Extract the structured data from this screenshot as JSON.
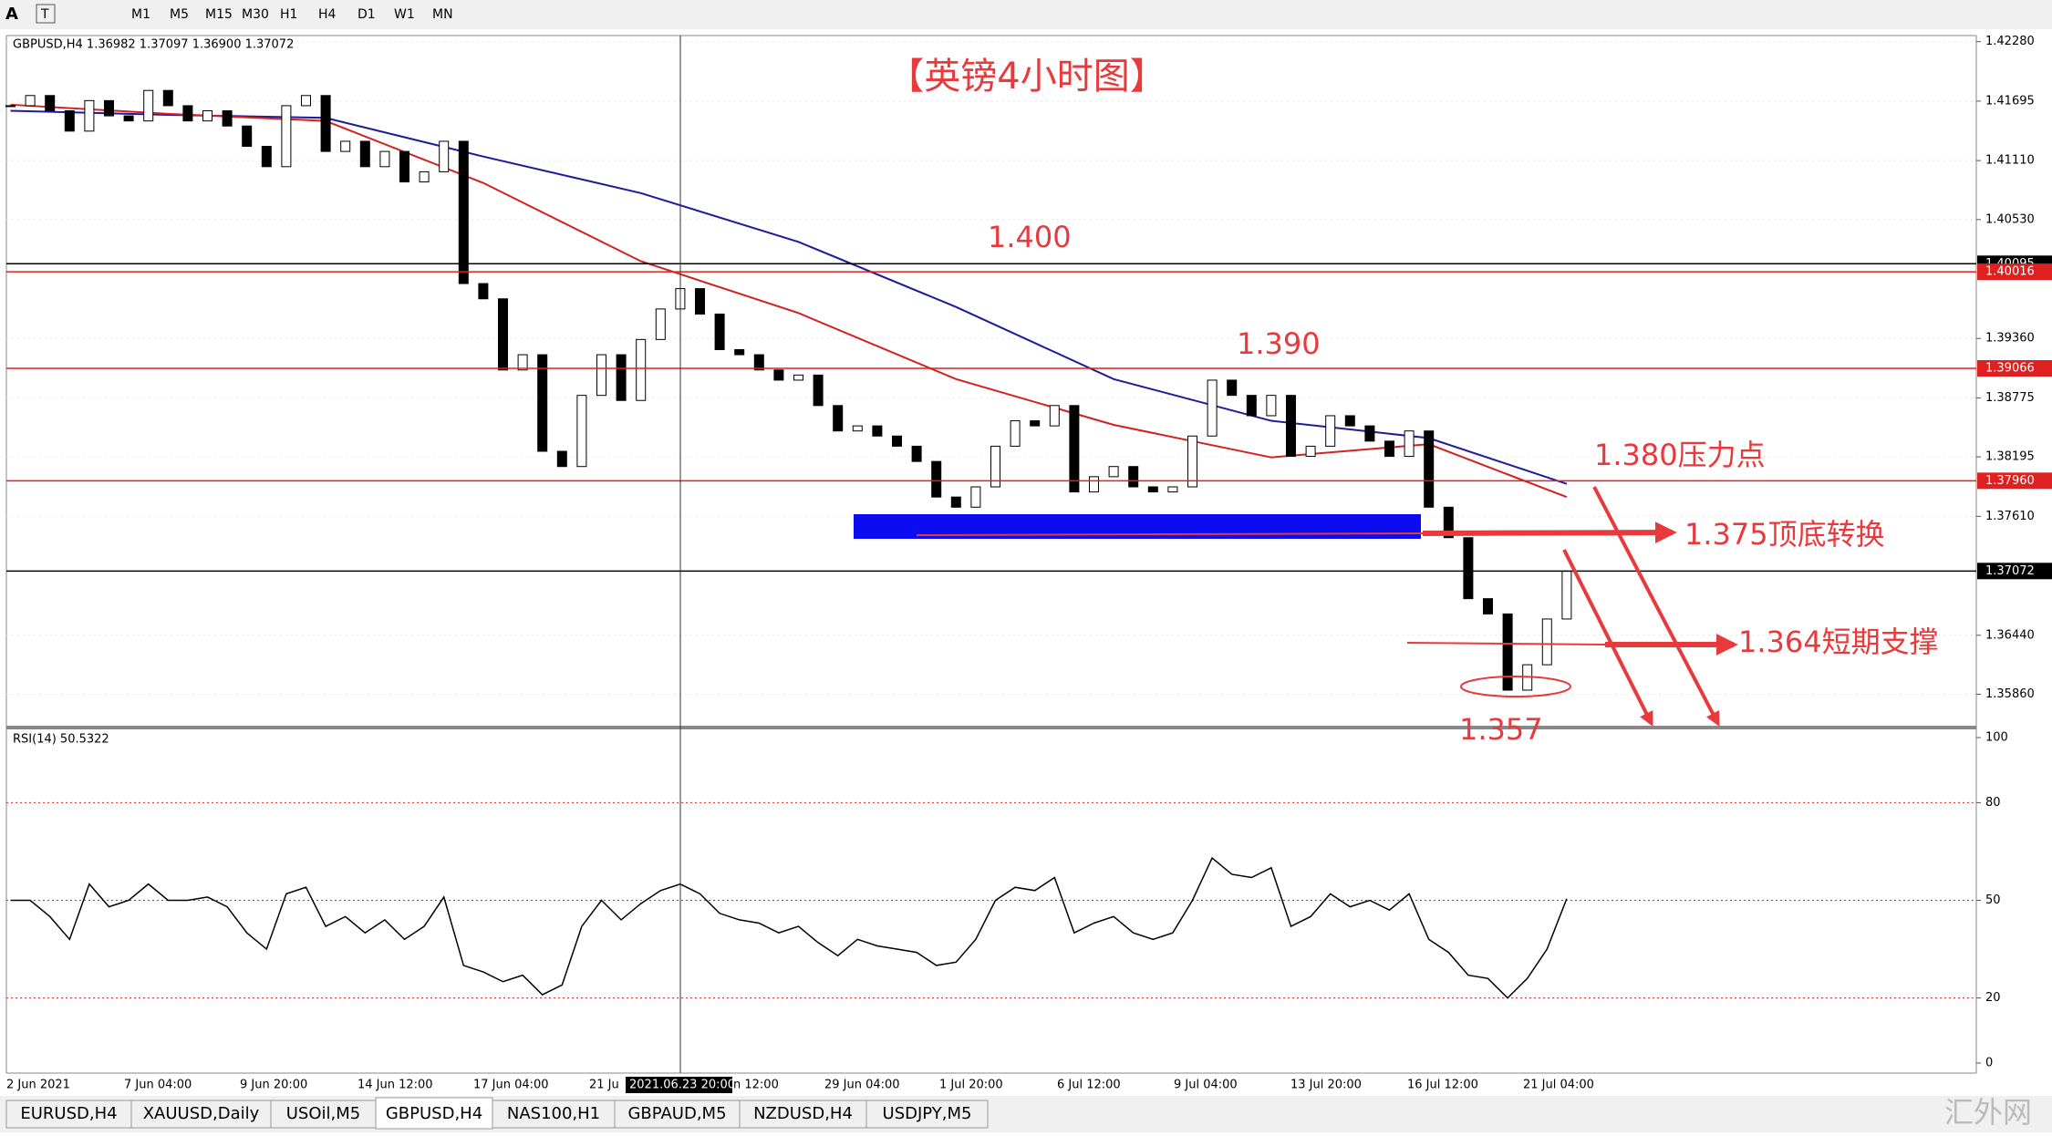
{
  "toolbar": {
    "periods": [
      "M1",
      "M5",
      "M15",
      "M30",
      "H1",
      "H4",
      "D1",
      "W1",
      "MN"
    ]
  },
  "chart_data": {
    "type": "candlestick",
    "header": "GBPUSD,H4  1.36982 1.37097 1.36900 1.37072",
    "title": "【英镑4小时图】",
    "close": [
      1.4165,
      1.4175,
      1.416,
      1.414,
      1.417,
      1.4155,
      1.415,
      1.418,
      1.4165,
      1.415,
      1.416,
      1.4145,
      1.4125,
      1.4105,
      1.4165,
      1.4175,
      1.412,
      1.413,
      1.4105,
      1.412,
      1.409,
      1.41,
      1.413,
      1.399,
      1.3975,
      1.3905,
      1.392,
      1.3825,
      1.381,
      1.388,
      1.392,
      1.3875,
      1.3935,
      1.3965,
      1.3985,
      1.396,
      1.3925,
      1.392,
      1.3905,
      1.3895,
      1.39,
      1.387,
      1.3845,
      1.385,
      1.384,
      1.383,
      1.3815,
      1.378,
      1.377,
      1.379,
      1.383,
      1.3855,
      1.385,
      1.387,
      1.3785,
      1.38,
      1.381,
      1.379,
      1.3785,
      1.379,
      1.384,
      1.3895,
      1.388,
      1.386,
      1.388,
      1.382,
      1.383,
      1.386,
      1.385,
      1.3835,
      1.382,
      1.3845,
      1.377,
      1.374,
      1.368,
      1.3665,
      1.359,
      1.3615,
      1.366,
      1.3707
    ],
    "bull_color": "#ffffff",
    "bear_color": "#000000",
    "ylim": [
      1.3555,
      1.4234
    ],
    "yticks": [
      {
        "value": 1.4228,
        "label": "1.42280"
      },
      1.41695,
      {
        "value": 1.4111,
        "label": "1.41110"
      },
      {
        "value": 1.4053,
        "label": "1.40530"
      },
      {
        "value": 1.3936,
        "label": "1.39360"
      },
      1.38775,
      1.38195,
      {
        "value": 1.3761,
        "label": "1.37610"
      },
      {
        "value": 1.3644,
        "label": "1.36440"
      },
      {
        "value": 1.3586,
        "label": "1.35860"
      }
    ],
    "price_tags": [
      {
        "value": 1.40095,
        "color": "#000000"
      },
      {
        "value": 1.40016,
        "color": "#e02020"
      },
      {
        "value": 1.39066,
        "color": "#e02020"
      },
      {
        "value": 1.3796,
        "label": "1.37960",
        "color": "#e02020"
      },
      {
        "value": 1.37072,
        "color": "#000000"
      }
    ],
    "ma": [
      {
        "color": "#1c1c9c",
        "x": [
          0,
          8,
          16,
          24,
          32,
          40,
          48,
          56,
          64,
          72,
          79
        ],
        "values": [
          1.416,
          1.4156,
          1.4153,
          1.4115,
          1.4079,
          1.4031,
          1.3967,
          1.3896,
          1.3855,
          1.3838,
          1.3793
        ]
      },
      {
        "color": "#d42020",
        "x": [
          0,
          8,
          16,
          24,
          32,
          40,
          48,
          56,
          64,
          72,
          79
        ],
        "values": [
          1.4166,
          1.4157,
          1.415,
          1.4089,
          1.4012,
          1.3961,
          1.3896,
          1.3851,
          1.3819,
          1.3832,
          1.378
        ]
      }
    ],
    "annotations": [
      "1.400",
      "1.390",
      "1.380压力点",
      "1.375顶底转换",
      "1.364短期支撑",
      "1.357"
    ],
    "time_labels": [
      "2 Jun 2021",
      "7 Jun 04:00",
      "9 Jun 20:00",
      "14 Jun 12:00",
      "17 Jun 04:00",
      "21 Ju",
      "n 12:00",
      "29 Jun 04:00",
      "1 Jul 20:00",
      "6 Jul 12:00",
      "9 Jul 04:00",
      "13 Jul 20:00",
      "16 Jul 12:00",
      "21 Jul 04:00"
    ],
    "cursor_label": "2021.06.23 20:00",
    "rsi": {
      "label": "RSI(14) 50.5322",
      "ylim": [
        0,
        100
      ],
      "yticks": [
        100,
        80,
        50,
        20,
        0
      ],
      "levels": [
        80,
        50,
        20
      ],
      "values": [
        50,
        50,
        45,
        38,
        55,
        48,
        50,
        55,
        50,
        50,
        51,
        48,
        40,
        35,
        52,
        54,
        42,
        45,
        40,
        44,
        38,
        42,
        51,
        30,
        28,
        25,
        27,
        21,
        24,
        42,
        50,
        44,
        49,
        53,
        55,
        52,
        46,
        44,
        43,
        40,
        42,
        37,
        33,
        38,
        36,
        35,
        34,
        30,
        31,
        38,
        50,
        54,
        53,
        57,
        40,
        43,
        45,
        40,
        38,
        40,
        50,
        63,
        58,
        57,
        60,
        42,
        45,
        52,
        48,
        50,
        47,
        52,
        38,
        34,
        27,
        26,
        20,
        26,
        35,
        50.5
      ]
    }
  },
  "tabs": [
    "EURUSD,H4",
    "XAUUSD,Daily",
    "USOil,M5",
    "GBPUSD,H4",
    "NAS100,H1",
    "GBPAUD,M5",
    "NZDUSD,H4",
    "USDJPY,M5"
  ],
  "active_tab": 3,
  "watermark": "汇外网"
}
